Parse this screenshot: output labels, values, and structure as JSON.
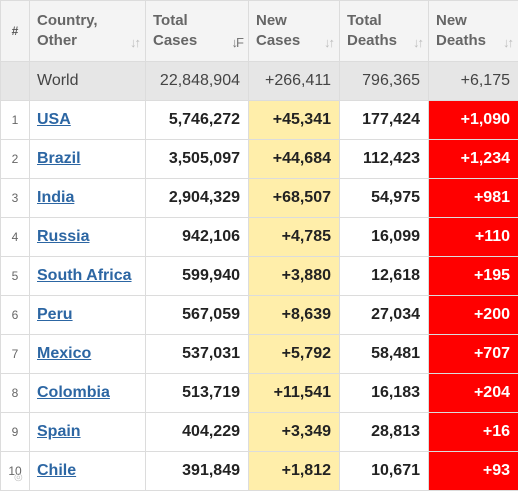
{
  "headers": {
    "idx": "#",
    "country_line1": "Country,",
    "country_line2": "Other",
    "total_cases_line1": "Total",
    "total_cases_line2": "Cases",
    "new_cases_line1": "New",
    "new_cases_line2": "Cases",
    "total_deaths_line1": "Total",
    "total_deaths_line2": "Deaths",
    "new_deaths_line1": "New",
    "new_deaths_line2": "Deaths"
  },
  "sort_icons": {
    "inactive": "sort-updown-icon",
    "active": "sort-descending-icon"
  },
  "world": {
    "name": "World",
    "total_cases": "22,848,904",
    "new_cases": "+266,411",
    "total_deaths": "796,365",
    "new_deaths": "+6,175"
  },
  "rows": [
    {
      "idx": "1",
      "country": "USA",
      "total_cases": "5,746,272",
      "new_cases": "+45,341",
      "total_deaths": "177,424",
      "new_deaths": "+1,090"
    },
    {
      "idx": "2",
      "country": "Brazil",
      "total_cases": "3,505,097",
      "new_cases": "+44,684",
      "total_deaths": "112,423",
      "new_deaths": "+1,234"
    },
    {
      "idx": "3",
      "country": "India",
      "total_cases": "2,904,329",
      "new_cases": "+68,507",
      "total_deaths": "54,975",
      "new_deaths": "+981"
    },
    {
      "idx": "4",
      "country": "Russia",
      "total_cases": "942,106",
      "new_cases": "+4,785",
      "total_deaths": "16,099",
      "new_deaths": "+110"
    },
    {
      "idx": "5",
      "country": "South Africa",
      "total_cases": "599,940",
      "new_cases": "+3,880",
      "total_deaths": "12,618",
      "new_deaths": "+195"
    },
    {
      "idx": "6",
      "country": "Peru",
      "total_cases": "567,059",
      "new_cases": "+8,639",
      "total_deaths": "27,034",
      "new_deaths": "+200"
    },
    {
      "idx": "7",
      "country": "Mexico",
      "total_cases": "537,031",
      "new_cases": "+5,792",
      "total_deaths": "58,481",
      "new_deaths": "+707"
    },
    {
      "idx": "8",
      "country": "Colombia",
      "total_cases": "513,719",
      "new_cases": "+11,541",
      "total_deaths": "16,183",
      "new_deaths": "+204"
    },
    {
      "idx": "9",
      "country": "Spain",
      "total_cases": "404,229",
      "new_cases": "+3,349",
      "total_deaths": "28,813",
      "new_deaths": "+16"
    },
    {
      "idx": "10",
      "country": "Chile",
      "total_cases": "391,849",
      "new_cases": "+1,812",
      "total_deaths": "10,671",
      "new_deaths": "+93"
    }
  ],
  "colors": {
    "new_cases_bg": "#ffeeaa",
    "new_deaths_bg": "#ff0000",
    "link": "#2c66a3",
    "world_bg": "#e6e6e6",
    "header_bg": "#f4f4f4"
  }
}
